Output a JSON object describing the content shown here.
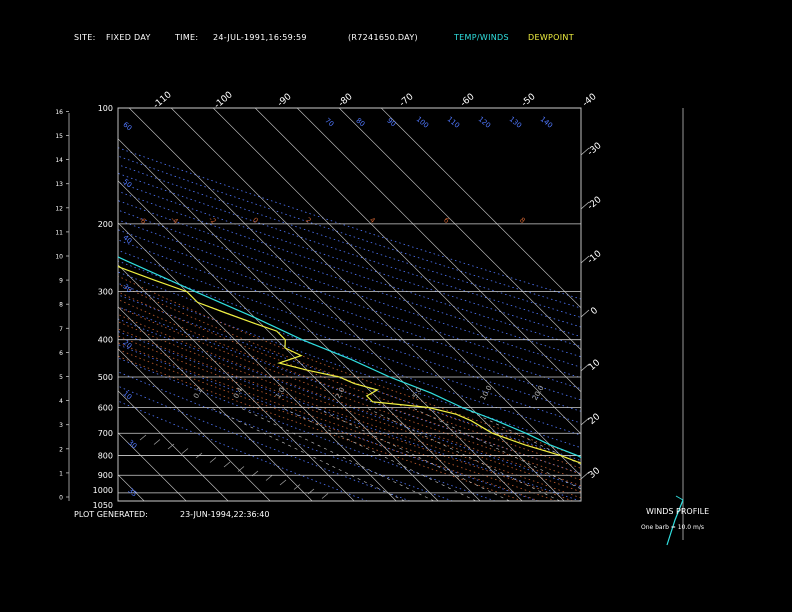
{
  "header": {
    "site_label": "SITE:",
    "site_value": "FIXED DAY",
    "time_label": "TIME:",
    "time_value": "24-JUL-1991,16:59:59",
    "file_name": "(R7241650.DAY)",
    "legend_temp": "TEMP/WINDS",
    "legend_dew": "DEWPOINT"
  },
  "footer": {
    "plot_generated_label": "PLOT GENERATED:",
    "plot_generated_value": "23-JUN-1994,22:36:40"
  },
  "winds_profile": {
    "title": "WINDS PROFILE",
    "note": "One barb = 10.0 m/s"
  },
  "colors": {
    "temp": "#30e0e0",
    "dew": "#f0f040",
    "isobar": "#d0d0d0",
    "isotherm": "#c8c8c8",
    "dry_adiabat": "#5078ff",
    "moist_adiabat": "#c86030",
    "mixing_ratio": "#d0d0d0"
  },
  "chart_data": {
    "type": "line",
    "title": "",
    "pressure_levels": [
      1050,
      1000,
      900,
      800,
      700,
      600,
      500,
      400,
      300,
      200,
      100
    ],
    "pressure_labels": [
      "1050",
      "1000",
      "900",
      "800",
      "700",
      "600",
      "500",
      "400",
      "300",
      "200",
      "100"
    ],
    "height_ticks_km": [
      0,
      1,
      2,
      3,
      4,
      5,
      6,
      7,
      8,
      9,
      10,
      11,
      12,
      13,
      14,
      15,
      16
    ],
    "top_temp_labels": [
      "-110",
      "-100",
      "-90",
      "-80",
      "-70",
      "-60",
      "-50",
      "-40"
    ],
    "right_temp_labels": [
      "-30",
      "-20",
      "-10",
      "0",
      "10",
      "20",
      "30"
    ],
    "dry_adiabat_labels": [
      "140",
      "130",
      "120",
      "110",
      "100",
      "90",
      "80",
      "70",
      "60",
      "50",
      "40",
      "30",
      "20",
      "10"
    ],
    "moist_adiabat_labels": [
      "-6",
      "-4",
      "-2",
      "0",
      "2",
      "4",
      "6",
      "8"
    ],
    "mixing_ratio_labels": [
      "0.2",
      "0.4",
      "1.0",
      "2.0",
      "5.0",
      "10.0",
      "20.0"
    ],
    "series": [
      {
        "name": "TEMP/WINDS",
        "pressure": [
          1000,
          950,
          900,
          850,
          800,
          750,
          700,
          650,
          600,
          550,
          500,
          450,
          400,
          350,
          300,
          250,
          200,
          180,
          160,
          140,
          120,
          110,
          100
        ],
        "temp": [
          28,
          24,
          20,
          16,
          14,
          10,
          7,
          3,
          -2,
          -6,
          -12,
          -17,
          -24,
          -30,
          -38,
          -47,
          -57,
          -62,
          -62,
          -58,
          -58,
          -58,
          -60
        ]
      },
      {
        "name": "DEWPOINT",
        "pressure": [
          1000,
          950,
          925,
          900,
          850,
          800,
          750,
          700,
          650,
          625,
          600,
          580,
          560,
          540,
          520,
          500,
          480,
          460,
          440,
          420,
          400,
          380,
          360,
          340,
          320,
          300,
          280,
          260,
          240,
          220,
          210,
          200
        ],
        "temp": [
          20,
          19,
          18,
          17,
          14,
          10,
          4,
          -1,
          -3,
          -5,
          -10,
          -22,
          -22,
          -18,
          -22,
          -24,
          -30,
          -35,
          -28,
          -30,
          -28,
          -28,
          -32,
          -36,
          -40,
          -40,
          -45,
          -50,
          -54,
          -60,
          -62,
          -66
        ]
      }
    ]
  }
}
